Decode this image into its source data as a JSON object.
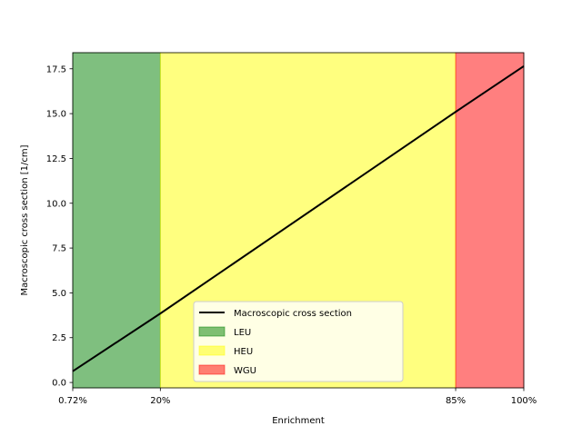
{
  "chart_data": {
    "type": "line",
    "title": "",
    "xlabel": "Enrichment",
    "ylabel": "Macroscopic cross section [1/cm]",
    "xlim": [
      0.72,
      100
    ],
    "ylim": [
      -0.3,
      18.4
    ],
    "x_ticks": [
      {
        "value": 0.72,
        "label": "0.72%"
      },
      {
        "value": 20,
        "label": "20%"
      },
      {
        "value": 85,
        "label": "85%"
      },
      {
        "value": 100,
        "label": "100%"
      }
    ],
    "y_ticks": [
      {
        "value": 0.0,
        "label": "0.0"
      },
      {
        "value": 2.5,
        "label": "2.5"
      },
      {
        "value": 5.0,
        "label": "5.0"
      },
      {
        "value": 7.5,
        "label": "7.5"
      },
      {
        "value": 10.0,
        "label": "10.0"
      },
      {
        "value": 12.5,
        "label": "12.5"
      },
      {
        "value": 15.0,
        "label": "15.0"
      },
      {
        "value": 17.5,
        "label": "17.5"
      }
    ],
    "series": [
      {
        "name": "Macroscopic cross section",
        "color": "#000000",
        "x": [
          0.72,
          20,
          85,
          100
        ],
        "y": [
          0.63,
          3.85,
          15.1,
          17.65
        ]
      }
    ],
    "regions": [
      {
        "name": "LEU",
        "from": 0.72,
        "to": 20,
        "color": "#008000",
        "alpha": 0.5
      },
      {
        "name": "HEU",
        "from": 20,
        "to": 85,
        "color": "#ffff00",
        "alpha": 0.5
      },
      {
        "name": "WGU",
        "from": 85,
        "to": 100,
        "color": "#ff0000",
        "alpha": 0.5
      }
    ],
    "grid": false,
    "legend_position": "lower-center"
  }
}
